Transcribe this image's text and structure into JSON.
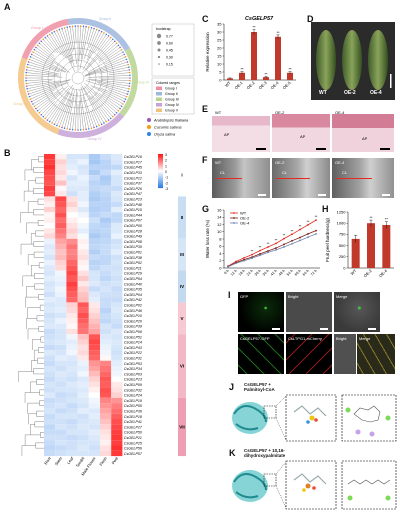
{
  "panels": {
    "A": "A",
    "B": "B",
    "C": "C",
    "D": "D",
    "E": "E",
    "F": "F",
    "G": "G",
    "H": "H",
    "I": "I",
    "J": "J",
    "K": "K"
  },
  "tree": {
    "bootstrap_title": "bootstrap",
    "bootstrap_values": [
      "0.77",
      "0.60",
      "0.45",
      "0.30",
      "0.15"
    ],
    "groups_title": "Colored ranges",
    "groups": [
      {
        "name": "Group I",
        "color": "#ef8fa1"
      },
      {
        "name": "Group II",
        "color": "#9fb7dd"
      },
      {
        "name": "Group III",
        "color": "#b7d48e"
      },
      {
        "name": "Group IV",
        "color": "#c6a2d6"
      },
      {
        "name": "Group V",
        "color": "#f2c27c"
      }
    ],
    "species": [
      {
        "name": "Arabidopsis thaliana",
        "color": "#9b59b6"
      },
      {
        "name": "Cucumis sativus",
        "color": "#f39c12"
      },
      {
        "name": "Oryza sativa",
        "color": "#2e86de"
      }
    ],
    "arc_labels": [
      "Group I",
      "Group II",
      "Group III",
      "Group IV",
      "Group V"
    ]
  },
  "heatmap": {
    "genes": [
      "CsGELP16",
      "CsGELP17",
      "CsGELP45",
      "CsGELP33",
      "CsGELP12",
      "CsGELP37",
      "CsGELP26",
      "CsGELP47",
      "CsGELP23",
      "CsGELP48",
      "CsGELP15",
      "CsGELP44",
      "CsGELP07",
      "CsGELP05",
      "CsGELP28",
      "CsGELP49",
      "CsGELP08",
      "CsGELP30",
      "CsGELP01",
      "CsGELP38",
      "CsGELP52",
      "CsGELP11",
      "CsGELP29",
      "CsGELP54",
      "CsGELP40",
      "CsGELP35",
      "CsGELP04",
      "CsGELP42",
      "CsGELP02",
      "CsGELP46",
      "CsGELP10",
      "CsGELP20",
      "CsGELP39",
      "CsGELP06",
      "CsGELP51",
      "CsGELP14",
      "CsGELP43",
      "CsGELP22",
      "CsGELP31",
      "CsGELP53",
      "CsGELP34",
      "CsGELP03",
      "CsGELP13",
      "CsGELP09",
      "CsGELP32",
      "CsGELP24",
      "CsGELP19",
      "CsGELP55",
      "CsGELP36",
      "CsGELP18",
      "CsGELP41",
      "CsGELP27",
      "CsGELP50",
      "CsGELP21",
      "CsGELP25",
      "CsGELP56",
      "CsGELP57"
    ],
    "tissues": [
      "Root",
      "Stem",
      "Leaf",
      "Tendril",
      "Male Flower",
      "Flesh",
      "Peel"
    ],
    "scale_values": [
      "3",
      "2",
      "1",
      "0",
      "-1",
      "-2",
      "-3"
    ],
    "groups": [
      {
        "label": "I",
        "color": "#ffffff"
      },
      {
        "label": "II",
        "color": "#c9def3"
      },
      {
        "label": "III",
        "color": "#d7e6f6"
      },
      {
        "label": "IV",
        "color": "#c2d9f0"
      },
      {
        "label": "V",
        "color": "#f6c9d3"
      },
      {
        "label": "VI",
        "color": "#f3b8c6"
      },
      {
        "label": "VII",
        "color": "#ee9fb3"
      }
    ],
    "values": [
      [
        2.6,
        0.2,
        -0.6,
        -0.6,
        -1.2,
        -0.8,
        -0.5
      ],
      [
        2.5,
        0.6,
        -0.5,
        -0.3,
        -1.3,
        -1.0,
        -0.6
      ],
      [
        2.7,
        0.4,
        -0.4,
        -0.6,
        -1.0,
        -1.0,
        -0.9
      ],
      [
        2.4,
        0.5,
        -0.2,
        -0.5,
        -1.2,
        -0.8,
        -0.4
      ],
      [
        2.3,
        0.3,
        -0.6,
        -0.3,
        -0.8,
        -1.2,
        -0.6
      ],
      [
        2.2,
        0.8,
        -0.4,
        -0.4,
        -1.0,
        -1.1,
        -0.6
      ],
      [
        2.5,
        0.1,
        -0.5,
        -0.5,
        -0.9,
        -0.8,
        -0.8
      ],
      [
        2.4,
        0.3,
        -0.7,
        -0.4,
        -1.1,
        -0.9,
        -0.5
      ],
      [
        0.4,
        2.4,
        0.4,
        -0.4,
        -1.2,
        -1.0,
        -0.6
      ],
      [
        0.2,
        2.2,
        0.6,
        -0.2,
        -1.0,
        -1.0,
        -0.8
      ],
      [
        0.6,
        2.0,
        0.3,
        -0.5,
        -1.1,
        -1.0,
        -0.4
      ],
      [
        0.1,
        2.3,
        0.0,
        -0.2,
        -1.0,
        -0.8,
        -0.9
      ],
      [
        0.2,
        1.9,
        0.2,
        0.0,
        -0.7,
        -1.2,
        -0.9
      ],
      [
        0.0,
        2.1,
        0.4,
        -0.2,
        -0.9,
        -1.0,
        -0.5
      ],
      [
        0.3,
        1.8,
        0.6,
        -0.4,
        -1.0,
        -0.9,
        -0.5
      ],
      [
        0.5,
        1.6,
        0.4,
        -0.1,
        -1.2,
        -1.0,
        -0.3
      ],
      [
        -0.3,
        1.2,
        1.5,
        0.2,
        -1.0,
        -0.9,
        -0.7
      ],
      [
        -0.5,
        1.0,
        1.8,
        0.1,
        -0.9,
        -0.8,
        -0.6
      ],
      [
        -0.4,
        0.8,
        1.6,
        0.3,
        -1.1,
        -0.8,
        -0.4
      ],
      [
        -0.6,
        0.9,
        1.7,
        0.4,
        -0.8,
        -0.9,
        -0.7
      ],
      [
        -0.3,
        0.6,
        2.0,
        0.2,
        -1.0,
        -0.9,
        -0.6
      ],
      [
        -0.5,
        0.5,
        2.2,
        0.1,
        -0.9,
        -0.7,
        -0.7
      ],
      [
        -0.6,
        -0.2,
        2.4,
        0.4,
        -0.6,
        -0.8,
        -0.6
      ],
      [
        -0.4,
        -0.3,
        2.2,
        0.7,
        -0.6,
        -0.9,
        -0.7
      ],
      [
        -0.6,
        -0.4,
        2.5,
        0.3,
        -0.5,
        -0.7,
        -0.6
      ],
      [
        -0.5,
        -0.2,
        2.3,
        0.6,
        -0.8,
        -0.6,
        -0.8
      ],
      [
        -0.7,
        -0.3,
        2.1,
        0.8,
        -0.5,
        -0.7,
        -0.7
      ],
      [
        -0.4,
        -0.5,
        2.0,
        0.9,
        -0.4,
        -0.8,
        -0.8
      ],
      [
        -0.6,
        -0.5,
        0.6,
        2.2,
        0.3,
        -0.8,
        -0.6
      ],
      [
        -0.5,
        -0.4,
        0.5,
        2.0,
        0.4,
        -1.0,
        -0.5
      ],
      [
        -0.7,
        -0.6,
        0.3,
        2.3,
        0.6,
        -0.8,
        -0.6
      ],
      [
        -0.6,
        -0.3,
        0.2,
        2.1,
        0.8,
        -0.9,
        -0.7
      ],
      [
        -0.5,
        -0.5,
        0.1,
        1.9,
        1.0,
        -0.6,
        -0.8
      ],
      [
        -0.8,
        -0.6,
        0.4,
        1.8,
        1.2,
        -0.7,
        -0.5
      ],
      [
        -0.7,
        -0.6,
        -0.2,
        0.8,
        2.2,
        -0.5,
        -0.6
      ],
      [
        -0.6,
        -0.5,
        -0.4,
        0.6,
        2.4,
        -0.4,
        -0.5
      ],
      [
        -0.8,
        -0.7,
        -0.3,
        0.4,
        2.3,
        -0.3,
        -0.6
      ],
      [
        -0.5,
        -0.6,
        -0.2,
        0.5,
        2.1,
        -0.2,
        -0.7
      ],
      [
        -0.7,
        -0.4,
        -0.5,
        0.3,
        2.0,
        0.1,
        -0.6
      ],
      [
        -0.8,
        -0.6,
        -0.6,
        -0.3,
        1.4,
        1.6,
        -0.4
      ],
      [
        -0.6,
        -0.7,
        -0.5,
        -0.4,
        1.2,
        1.8,
        -0.3
      ],
      [
        -0.7,
        -0.5,
        -0.6,
        -0.2,
        0.9,
        2.0,
        -0.2
      ],
      [
        -0.8,
        -0.6,
        -0.7,
        -0.5,
        0.6,
        2.2,
        0.0
      ],
      [
        -0.6,
        -0.7,
        -0.5,
        -0.4,
        0.4,
        2.1,
        0.3
      ],
      [
        -0.7,
        -0.6,
        -0.6,
        -0.5,
        0.2,
        2.3,
        0.4
      ],
      [
        -0.5,
        -0.8,
        -0.7,
        -0.4,
        0.0,
        2.2,
        0.6
      ],
      [
        -0.8,
        -0.7,
        -0.6,
        -0.5,
        -0.2,
        1.6,
        1.4
      ],
      [
        -0.7,
        -0.6,
        -0.8,
        -0.6,
        -0.3,
        1.4,
        1.7
      ],
      [
        -0.6,
        -0.8,
        -0.7,
        -0.4,
        -0.5,
        1.2,
        1.9
      ],
      [
        -0.8,
        -0.6,
        -0.6,
        -0.7,
        -0.4,
        1.0,
        2.1
      ],
      [
        -0.7,
        -0.7,
        -0.8,
        -0.6,
        -0.5,
        0.8,
        2.3
      ],
      [
        -0.9,
        -0.6,
        -0.7,
        -0.5,
        -0.6,
        0.6,
        2.4
      ],
      [
        -0.8,
        -0.8,
        -0.6,
        -0.6,
        -0.4,
        0.4,
        2.5
      ],
      [
        -0.7,
        -0.7,
        -0.8,
        -0.7,
        -0.5,
        0.3,
        2.6
      ],
      [
        -0.8,
        -0.6,
        -0.7,
        -0.6,
        -0.6,
        0.2,
        2.5
      ],
      [
        -0.9,
        -0.8,
        -0.7,
        -0.5,
        -0.7,
        0.4,
        2.7
      ],
      [
        -0.8,
        -0.7,
        -0.6,
        -0.6,
        -0.6,
        0.5,
        2.6
      ]
    ]
  },
  "chart_data": [
    {
      "type": "bar",
      "title": "CsGELP57",
      "ylabel": "Relative expression",
      "categories": [
        "WT",
        "OE-1",
        "OE-2",
        "OE-3",
        "OE-4",
        "OE-5"
      ],
      "values": [
        1,
        4.5,
        30,
        1.8,
        27,
        4.5
      ],
      "errors": [
        0.3,
        0.8,
        1.5,
        0.4,
        1.2,
        0.8
      ],
      "annotations": [
        "",
        "**",
        "**",
        "**",
        "**",
        "**"
      ],
      "ylim": [
        0,
        35
      ],
      "yticks": [
        0,
        5,
        10,
        15,
        20,
        25,
        30,
        35
      ],
      "color": "#c0392b"
    },
    {
      "type": "line",
      "ylabel": "Water loss rate (%)",
      "x": [
        "0 h",
        "12 h",
        "18 h",
        "24 h",
        "30 h",
        "36 h",
        "42 h",
        "48 h",
        "54 h",
        "60 h",
        "66 h",
        "72 h"
      ],
      "series": [
        {
          "name": "WT",
          "color": "#e52b1f",
          "values": [
            0.5,
            1.8,
            2.8,
            3.7,
            4.8,
            5.8,
            6.8,
            8.1,
            9.3,
            10.6,
            11.9,
            13.2
          ]
        },
        {
          "name": "OE-2",
          "color": "#7a1e14",
          "values": [
            0.4,
            1.5,
            2.3,
            3.0,
            3.9,
            4.7,
            5.5,
            6.5,
            7.5,
            8.4,
            9.4,
            10.3
          ]
        },
        {
          "name": "OE-4",
          "color": "#6f86b5",
          "values": [
            0.3,
            1.3,
            2.0,
            2.7,
            3.5,
            4.3,
            5.0,
            5.8,
            6.7,
            7.6,
            8.5,
            9.4
          ]
        }
      ],
      "annotations": [
        "",
        "",
        "",
        "**",
        "**",
        "**",
        "**",
        "**",
        "**",
        "**",
        "**",
        "**"
      ],
      "ylim": [
        0,
        16
      ],
      "yticks": [
        0,
        2,
        4,
        6,
        8,
        10,
        12,
        14,
        16
      ]
    },
    {
      "type": "bar",
      "ylabel": "Fruit peel hardness(g)",
      "categories": [
        "WT",
        "OE-2",
        "OE-4"
      ],
      "values": [
        650,
        1000,
        960
      ],
      "errors": [
        80,
        70,
        75
      ],
      "annotations": [
        "",
        "**",
        "**"
      ],
      "ylim": [
        0,
        1250
      ],
      "yticks": [
        0,
        250,
        500,
        750,
        1000,
        1250
      ],
      "color": "#c0392b"
    }
  ],
  "photos": {
    "D_labels": [
      "WT",
      "OE-2",
      "OE-4"
    ],
    "E_labels": [
      "WT",
      "OE-2",
      "OE-4"
    ],
    "E_tag": "AP",
    "F_labels": [
      "WT",
      "OE-2",
      "OE-4"
    ],
    "F_tag": "CL",
    "I_top": [
      "GFP",
      "Bright",
      "Merge"
    ],
    "I_bottom": [
      "CsGELP57-GFP",
      "CsLTPG1-mCherry",
      "Bright",
      "Merge"
    ]
  },
  "docking": {
    "J_title": "CsGELP57 +\nPalmitoyl-CoA",
    "K_title": "CsGELP57 + 10,16-\ndihydroxypalmitate"
  }
}
